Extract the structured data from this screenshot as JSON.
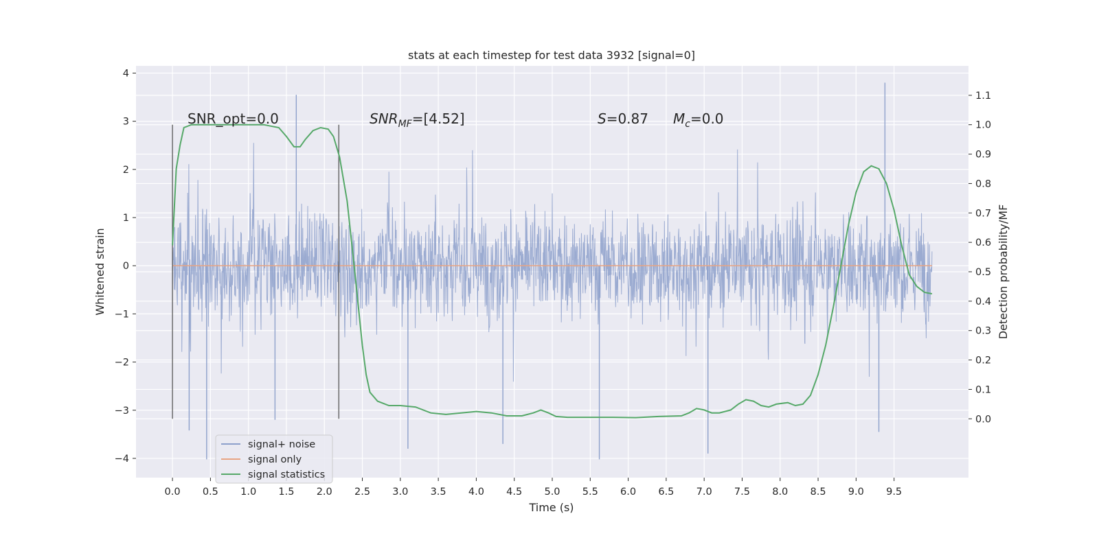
{
  "chart_data": {
    "type": "line",
    "title": "stats at each timestep for test data 3932 [signal=0]",
    "xlabel": "Time (s)",
    "ylabel_left": "Whitened strain",
    "ylabel_right": "Detection probability/MF",
    "xlim": [
      -0.48,
      10.48
    ],
    "ylim_left": [
      -4.4,
      4.15
    ],
    "ylim_right": [
      -0.2,
      1.2
    ],
    "x_ticks": [
      "0.0",
      "0.5",
      "1.0",
      "1.5",
      "2.0",
      "2.5",
      "3.0",
      "3.5",
      "4.0",
      "4.5",
      "5.0",
      "5.5",
      "6.0",
      "6.5",
      "7.0",
      "7.5",
      "8.0",
      "8.5",
      "9.0",
      "9.5"
    ],
    "y_ticks_left": [
      "−4",
      "−3",
      "−2",
      "−1",
      "0",
      "1",
      "2",
      "3",
      "4"
    ],
    "y_ticks_right": [
      "0.0",
      "0.1",
      "0.2",
      "0.3",
      "0.4",
      "0.5",
      "0.6",
      "0.7",
      "0.8",
      "0.9",
      "1.0",
      "1.1"
    ],
    "grid": true,
    "legend_position": "lower-left",
    "annotations": [
      {
        "text": "SNR_opt=0.0"
      },
      {
        "text": "SNR",
        "sub": "MF",
        "post": "=[4.52]"
      },
      {
        "text": "S",
        "post": "=0.87"
      },
      {
        "text": "M",
        "sub": "c",
        "post": "=0.0"
      }
    ],
    "vertical_markers_x": [
      0.0,
      2.19
    ],
    "series": [
      {
        "name": "signal+ noise",
        "color": "#8da0cb",
        "axis": "left",
        "x_range": [
          0.0,
          10.0
        ],
        "envelope_description": "dense whitened noise, mostly within ±1.5, peaks up to about 3.8 and down to about -4.0",
        "extremes": [
          {
            "x": 1.63,
            "y": 3.55
          },
          {
            "x": 9.38,
            "y": 3.8
          },
          {
            "x": 0.45,
            "y": -4.02
          },
          {
            "x": 5.62,
            "y": -4.02
          },
          {
            "x": 9.3,
            "y": -3.45
          },
          {
            "x": 0.22,
            "y": -3.42
          },
          {
            "x": 1.35,
            "y": -3.2
          },
          {
            "x": 3.1,
            "y": -3.8
          },
          {
            "x": 4.35,
            "y": -3.7
          },
          {
            "x": 7.05,
            "y": -3.9
          }
        ]
      },
      {
        "name": "signal only",
        "color": "#e8a482",
        "axis": "left",
        "x": [
          0.0,
          10.0
        ],
        "y": [
          0.0,
          0.0
        ]
      },
      {
        "name": "signal statistics",
        "color": "#55a868",
        "axis": "right",
        "x": [
          0.0,
          0.05,
          0.1,
          0.15,
          0.25,
          0.4,
          0.6,
          0.8,
          1.0,
          1.2,
          1.4,
          1.5,
          1.6,
          1.68,
          1.75,
          1.85,
          1.95,
          2.05,
          2.12,
          2.2,
          2.3,
          2.4,
          2.5,
          2.55,
          2.6,
          2.7,
          2.85,
          3.0,
          3.2,
          3.4,
          3.6,
          3.8,
          4.0,
          4.2,
          4.4,
          4.6,
          4.75,
          4.85,
          4.95,
          5.05,
          5.2,
          5.5,
          5.8,
          6.1,
          6.4,
          6.7,
          6.8,
          6.9,
          7.0,
          7.1,
          7.2,
          7.35,
          7.45,
          7.55,
          7.65,
          7.75,
          7.85,
          7.95,
          8.1,
          8.2,
          8.3,
          8.4,
          8.5,
          8.6,
          8.7,
          8.8,
          8.9,
          9.0,
          9.1,
          9.2,
          9.3,
          9.4,
          9.5,
          9.6,
          9.7,
          9.8,
          9.9,
          10.0
        ],
        "y": [
          0.59,
          0.85,
          0.93,
          0.99,
          1.0,
          1.0,
          1.0,
          1.0,
          1.0,
          1.0,
          0.99,
          0.96,
          0.925,
          0.925,
          0.95,
          0.98,
          0.99,
          0.985,
          0.96,
          0.89,
          0.74,
          0.5,
          0.25,
          0.15,
          0.09,
          0.06,
          0.045,
          0.045,
          0.04,
          0.02,
          0.015,
          0.02,
          0.025,
          0.02,
          0.01,
          0.01,
          0.02,
          0.03,
          0.02,
          0.008,
          0.005,
          0.005,
          0.005,
          0.004,
          0.008,
          0.01,
          0.02,
          0.035,
          0.03,
          0.02,
          0.02,
          0.03,
          0.05,
          0.065,
          0.06,
          0.045,
          0.04,
          0.05,
          0.055,
          0.045,
          0.05,
          0.08,
          0.15,
          0.25,
          0.38,
          0.52,
          0.66,
          0.77,
          0.84,
          0.86,
          0.85,
          0.8,
          0.71,
          0.59,
          0.49,
          0.45,
          0.43,
          0.425
        ]
      }
    ]
  }
}
